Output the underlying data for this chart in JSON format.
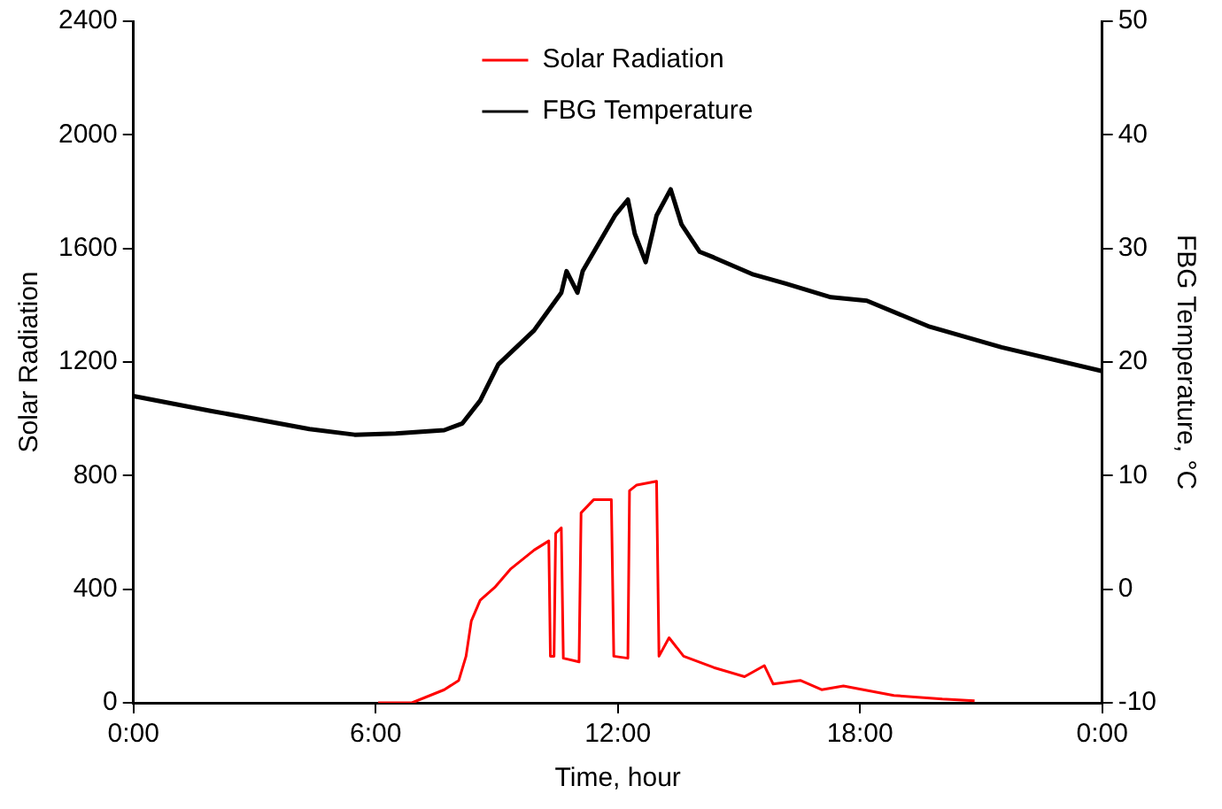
{
  "chart_data": {
    "type": "line",
    "xlabel": "Time, hour",
    "ylabel": "Solar Radiation",
    "y2label": "FBG Temperature, °C",
    "xlim": [
      0,
      24
    ],
    "xticks": [
      {
        "value": 0,
        "label": "0:00"
      },
      {
        "value": 6,
        "label": "6:00"
      },
      {
        "value": 12,
        "label": "12:00"
      },
      {
        "value": 18,
        "label": "18:00"
      },
      {
        "value": 24,
        "label": "0:00"
      }
    ],
    "ylim": [
      0,
      2400
    ],
    "yticks": [
      0,
      400,
      800,
      1200,
      1600,
      2000,
      2400
    ],
    "y2lim": [
      -10,
      50
    ],
    "y2ticks": [
      -10,
      0,
      10,
      20,
      30,
      40,
      50
    ],
    "grid": false,
    "legend": "top",
    "marker": "none",
    "line_style": "solid",
    "series": [
      {
        "name": "Solar Radiation",
        "color": "#ff0000",
        "x": [
          6.06,
          6.9,
          7.7,
          8.06,
          8.24,
          8.37,
          8.59,
          8.95,
          9.35,
          9.93,
          10.29,
          10.33,
          10.42,
          10.46,
          10.6,
          10.65,
          11.04,
          11.09,
          11.4,
          11.84,
          11.9,
          12.25,
          12.29,
          12.47,
          12.96,
          13.02,
          13.27,
          13.63,
          14.38,
          15.14,
          15.63,
          15.85,
          16.52,
          17.05,
          17.59,
          18.84,
          20.04,
          20.84
        ],
        "values": [
          0,
          0,
          46,
          79,
          164,
          288,
          361,
          406,
          472,
          538,
          570,
          164,
          164,
          597,
          616,
          157,
          144,
          669,
          715,
          715,
          164,
          157,
          747,
          767,
          780,
          164,
          229,
          164,
          124,
          92,
          131,
          66,
          79,
          46,
          59,
          26,
          13,
          7
        ]
      },
      {
        "name": "FBG Temperature",
        "color": "#000000",
        "axis": "y2",
        "x": [
          0,
          1.91,
          4.36,
          5.48,
          6.5,
          7.7,
          8.15,
          8.59,
          9.04,
          9.93,
          10.6,
          10.73,
          11.0,
          11.13,
          11.93,
          12.25,
          12.42,
          12.69,
          12.96,
          13.31,
          13.58,
          14.03,
          14.38,
          15.36,
          16.16,
          17.28,
          18.17,
          19.73,
          21.51,
          24
        ],
        "values": [
          17.0,
          15.7,
          14.1,
          13.6,
          13.7,
          14.0,
          14.6,
          16.6,
          19.8,
          22.8,
          26.1,
          28.0,
          26.1,
          28.0,
          32.9,
          34.3,
          31.3,
          28.8,
          32.9,
          35.2,
          32.1,
          29.7,
          29.2,
          27.7,
          26.9,
          25.7,
          25.4,
          23.1,
          21.3,
          19.2
        ]
      }
    ]
  }
}
